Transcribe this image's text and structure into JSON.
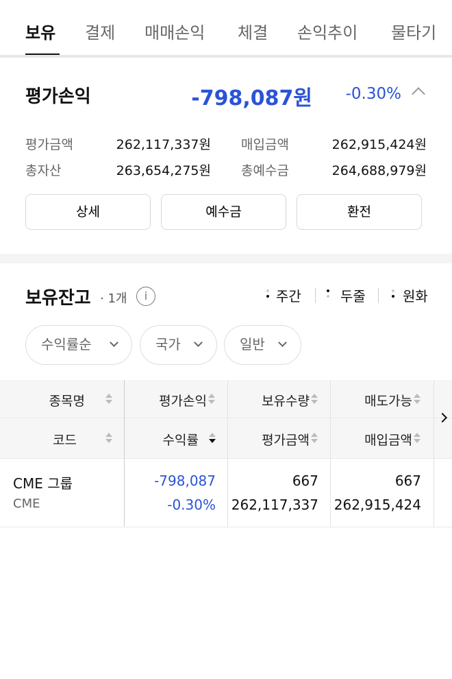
{
  "tabs": [
    {
      "label": "보유",
      "active": true
    },
    {
      "label": "결제"
    },
    {
      "label": "매매손익"
    },
    {
      "label": "체결"
    },
    {
      "label": "손익추이"
    },
    {
      "label": "물타기"
    }
  ],
  "summary": {
    "title": "평가손익",
    "amount": "-798,087원",
    "percent": "-0.30%",
    "collapse_icon": "chevron-up-icon",
    "rows": [
      {
        "label": "평가금액",
        "value": "262,117,337원",
        "label2": "매입금액",
        "value2": "262,915,424원"
      },
      {
        "label": "총자산",
        "value": "263,654,275원",
        "label2": "총예수금",
        "value2": "264,688,979원"
      }
    ],
    "buttons": [
      "상세",
      "예수금",
      "환전"
    ]
  },
  "holdings": {
    "title": "보유잔고",
    "count": "· 1개",
    "info_icon": "i",
    "options": [
      "주간",
      "두줄",
      "원화"
    ],
    "filters": [
      "수익률순",
      "국가",
      "일반"
    ],
    "headers_top": [
      "종목명",
      "평가손익",
      "보유수량",
      "매도가능"
    ],
    "headers_bottom": [
      "코드",
      "수익률",
      "평가금액",
      "매입금액"
    ],
    "rows": [
      {
        "name": "CME 그룹",
        "code": "CME",
        "pl": "-798,087",
        "rate": "-0.30%",
        "qty": "667",
        "eval": "262,117,337",
        "sellable": "667",
        "buy": "262,915,424"
      }
    ]
  },
  "colors": {
    "negative": "#2a53d6",
    "text": "#111111"
  }
}
